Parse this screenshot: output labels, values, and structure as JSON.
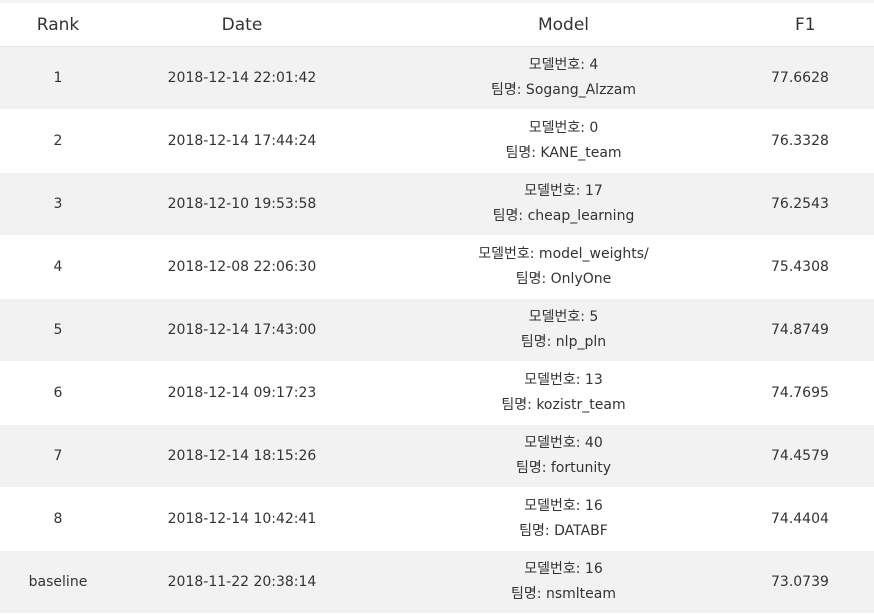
{
  "columns": {
    "rank": "Rank",
    "date": "Date",
    "model": "Model",
    "f1": "F1"
  },
  "rows": [
    {
      "rank": "1",
      "date": "2018-12-14 22:01:42",
      "model_number": "모델번호: 4",
      "team": "팀명: Sogang_Alzzam",
      "f1": "77.6628"
    },
    {
      "rank": "2",
      "date": "2018-12-14 17:44:24",
      "model_number": "모델번호: 0",
      "team": "팀명: KANE_team",
      "f1": "76.3328"
    },
    {
      "rank": "3",
      "date": "2018-12-10 19:53:58",
      "model_number": "모델번호: 17",
      "team": "팀명: cheap_learning",
      "f1": "76.2543"
    },
    {
      "rank": "4",
      "date": "2018-12-08 22:06:30",
      "model_number": "모델번호: model_weights/",
      "team": "팀명: OnlyOne",
      "f1": "75.4308"
    },
    {
      "rank": "5",
      "date": "2018-12-14 17:43:00",
      "model_number": "모델번호: 5",
      "team": "팀명: nlp_pln",
      "f1": "74.8749"
    },
    {
      "rank": "6",
      "date": "2018-12-14 09:17:23",
      "model_number": "모델번호: 13",
      "team": "팀명: kozistr_team",
      "f1": "74.7695"
    },
    {
      "rank": "7",
      "date": "2018-12-14 18:15:26",
      "model_number": "모델번호: 40",
      "team": "팀명: fortunity",
      "f1": "74.4579"
    },
    {
      "rank": "8",
      "date": "2018-12-14 10:42:41",
      "model_number": "모델번호: 16",
      "team": "팀명: DATABF",
      "f1": "74.4404"
    },
    {
      "rank": "baseline",
      "date": "2018-11-22 20:38:14",
      "model_number": "모델번호: 16",
      "team": "팀명: nsmlteam",
      "f1": "73.0739"
    }
  ],
  "colors": {
    "row_alt": "#f2f2f2",
    "row_plain": "#ffffff",
    "text": "#333333"
  }
}
